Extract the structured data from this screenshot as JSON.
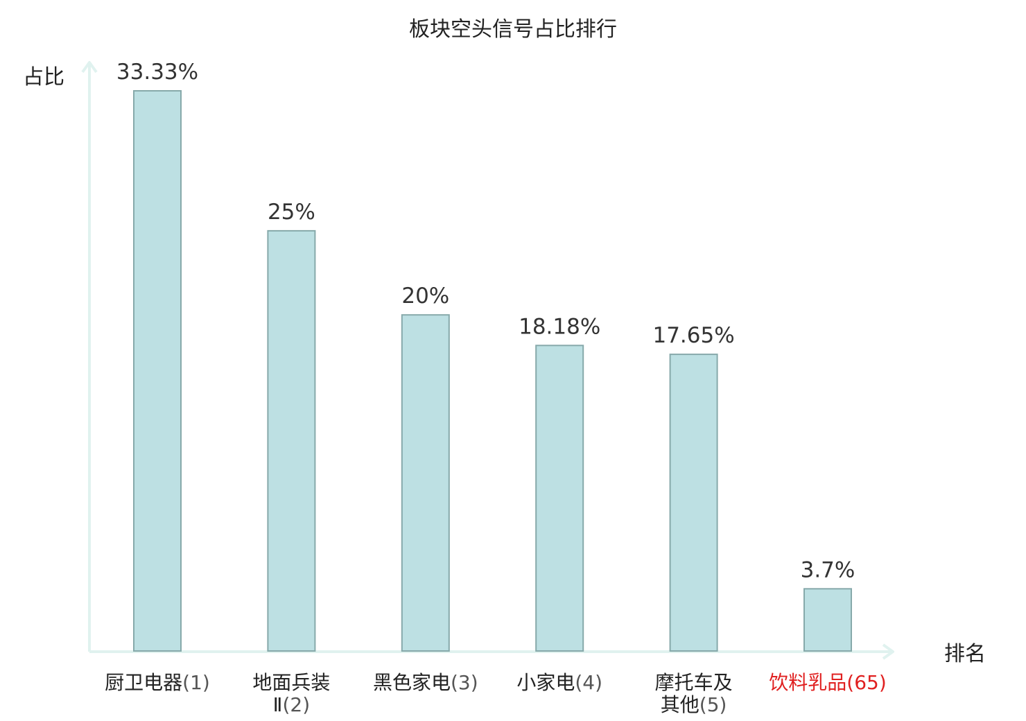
{
  "chart_data": {
    "type": "bar",
    "title": "板块空头信号占比排行",
    "ylabel": "占比",
    "xlabel": "排名",
    "categories": [
      {
        "lines": [
          "厨卫电器"
        ],
        "rank": "(1)",
        "highlight": false
      },
      {
        "lines": [
          "地面兵装",
          "Ⅱ"
        ],
        "rank": "(2)",
        "highlight": false
      },
      {
        "lines": [
          "黑色家电"
        ],
        "rank": "(3)",
        "highlight": false
      },
      {
        "lines": [
          "小家电"
        ],
        "rank": "(4)",
        "highlight": false
      },
      {
        "lines": [
          "摩托车及",
          "其他"
        ],
        "rank": "(5)",
        "highlight": false
      },
      {
        "lines": [
          "饮料乳品"
        ],
        "rank": "(65)",
        "highlight": true
      }
    ],
    "values": [
      33.33,
      25,
      20,
      18.18,
      17.65,
      3.7
    ],
    "value_labels": [
      "33.33%",
      "25%",
      "20%",
      "18.18%",
      "17.65%",
      "3.7%"
    ],
    "ylim": [
      0,
      33.33
    ],
    "grid": false,
    "legend": "none",
    "colors": {
      "bar_fill": "#bde0e3",
      "bar_stroke": "#86a9aa",
      "axis": "#e0f2ef",
      "highlight": "#e02020"
    }
  }
}
